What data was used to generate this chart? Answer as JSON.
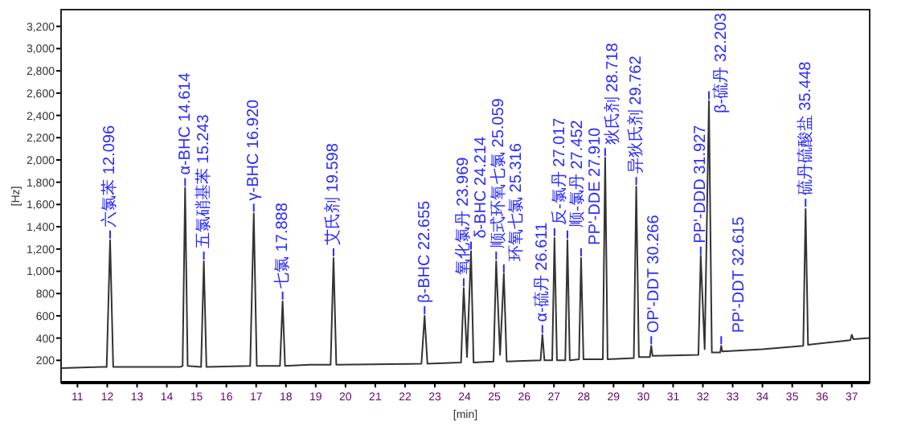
{
  "chart_data": {
    "type": "line",
    "xlabel": "[min]",
    "ylabel": "[Hz]",
    "xlim": [
      10.45,
      37.6
    ],
    "ylim": [
      0,
      3350
    ],
    "xticks": [
      11,
      12,
      13,
      14,
      15,
      16,
      17,
      18,
      19,
      20,
      21,
      22,
      23,
      24,
      25,
      26,
      27,
      28,
      29,
      30,
      31,
      32,
      33,
      34,
      35,
      36,
      37
    ],
    "yticks": [
      200,
      400,
      600,
      800,
      {
        "value": 1000,
        "label": "1,000"
      },
      {
        "value": 1200,
        "label": "1,200"
      },
      {
        "value": 1400,
        "label": "1,400"
      },
      {
        "value": 1600,
        "label": "1,600"
      },
      {
        "value": 1800,
        "label": "1,800"
      },
      {
        "value": 2000,
        "label": "2,000"
      },
      {
        "value": 2200,
        "label": "2,200"
      },
      {
        "value": 2400,
        "label": "2,400"
      },
      {
        "value": 2600,
        "label": "2,600"
      },
      {
        "value": 2800,
        "label": "2,800"
      },
      {
        "value": 3000,
        "label": "3,000"
      },
      {
        "value": 3200,
        "label": "3,200"
      }
    ],
    "grid": false,
    "marker": "none",
    "line_style": "solid",
    "series": [
      {
        "color": "#333333",
        "x": [
          10.45,
          11.8,
          11.98,
          12.096,
          12.2,
          14.45,
          14.53,
          14.614,
          14.7,
          15.15,
          15.243,
          15.33,
          16.8,
          16.92,
          17.02,
          17.8,
          17.888,
          17.97,
          18.8,
          19.5,
          19.598,
          19.69,
          22.55,
          22.655,
          22.75,
          23.88,
          23.969,
          24.08,
          24.214,
          24.3,
          24.97,
          25.059,
          25.19,
          25.316,
          25.41,
          26.55,
          26.611,
          26.68,
          26.94,
          27.017,
          27.1,
          27.38,
          27.452,
          27.53,
          27.84,
          27.91,
          27.99,
          28.64,
          28.718,
          28.8,
          29.68,
          29.762,
          29.85,
          30.22,
          30.266,
          30.31,
          31.85,
          31.927,
          32.06,
          32.203,
          32.3,
          32.58,
          32.615,
          32.65,
          34.0,
          35.37,
          35.448,
          35.53,
          36.95,
          37.0,
          37.05,
          37.6
        ],
        "values": [
          130,
          140,
          140,
          1280,
          140,
          140,
          150,
          1750,
          150,
          140,
          1090,
          140,
          150,
          1520,
          150,
          150,
          730,
          150,
          160,
          160,
          1120,
          160,
          170,
          600,
          170,
          180,
          850,
          230,
          1180,
          180,
          190,
          1090,
          250,
          980,
          190,
          200,
          430,
          200,
          200,
          1300,
          200,
          200,
          1280,
          200,
          210,
          1120,
          210,
          210,
          2020,
          210,
          220,
          1760,
          230,
          230,
          330,
          240,
          250,
          1140,
          300,
          2530,
          270,
          270,
          330,
          280,
          300,
          330,
          1560,
          340,
          380,
          430,
          390,
          400
        ]
      }
    ],
    "annotations": [
      {
        "text": "六氯苯 12.096",
        "x": 12.096,
        "y": 1280
      },
      {
        "text": "α-BHC 14.614",
        "x": 14.614,
        "y": 1750
      },
      {
        "text": "五氯硝基苯 15.243",
        "x": 15.243,
        "y": 1090
      },
      {
        "text": "γ-BHC 16.920",
        "x": 16.92,
        "y": 1520
      },
      {
        "text": "七氯 17.888",
        "x": 17.888,
        "y": 730
      },
      {
        "text": "艾氏剂 19.598",
        "x": 19.598,
        "y": 1120
      },
      {
        "text": "β-BHC 22.655",
        "x": 22.655,
        "y": 600
      },
      {
        "text": "氧化氯丹 23.969",
        "x": 23.969,
        "y": 850
      },
      {
        "text": "δ-BHC 24.214",
        "x": 24.214,
        "y": 1180
      },
      {
        "text": "顺式环氧七氯 25.059",
        "x": 25.059,
        "y": 1090
      },
      {
        "text": "环氧七氯 25.316",
        "x": 25.316,
        "y": 975
      },
      {
        "text": "α-硫丹 26.611",
        "x": 26.611,
        "y": 430
      },
      {
        "text": "反-氯丹 27.017",
        "x": 27.017,
        "y": 1300
      },
      {
        "text": "顺-氯丹 27.452",
        "x": 27.452,
        "y": 1280
      },
      {
        "text": "PP'-DDE 27.910",
        "x": 27.91,
        "y": 1120
      },
      {
        "text": "狄氏剂 28.718",
        "x": 28.718,
        "y": 2020
      },
      {
        "text": "异狄氏剂 29.762",
        "x": 29.762,
        "y": 1760
      },
      {
        "text": "OP'-DDT 30.266",
        "x": 30.266,
        "y": 330
      },
      {
        "text": "PP'-DDD 31.927",
        "x": 31.927,
        "y": 1135
      },
      {
        "text": "β-硫丹 32.203",
        "x": 32.203,
        "y": 2530
      },
      {
        "text": "PP'-DDT 32.615",
        "x": 32.615,
        "y": 330
      },
      {
        "text": "硫丹硫酸盐 35.448",
        "x": 35.448,
        "y": 1565
      }
    ]
  }
}
